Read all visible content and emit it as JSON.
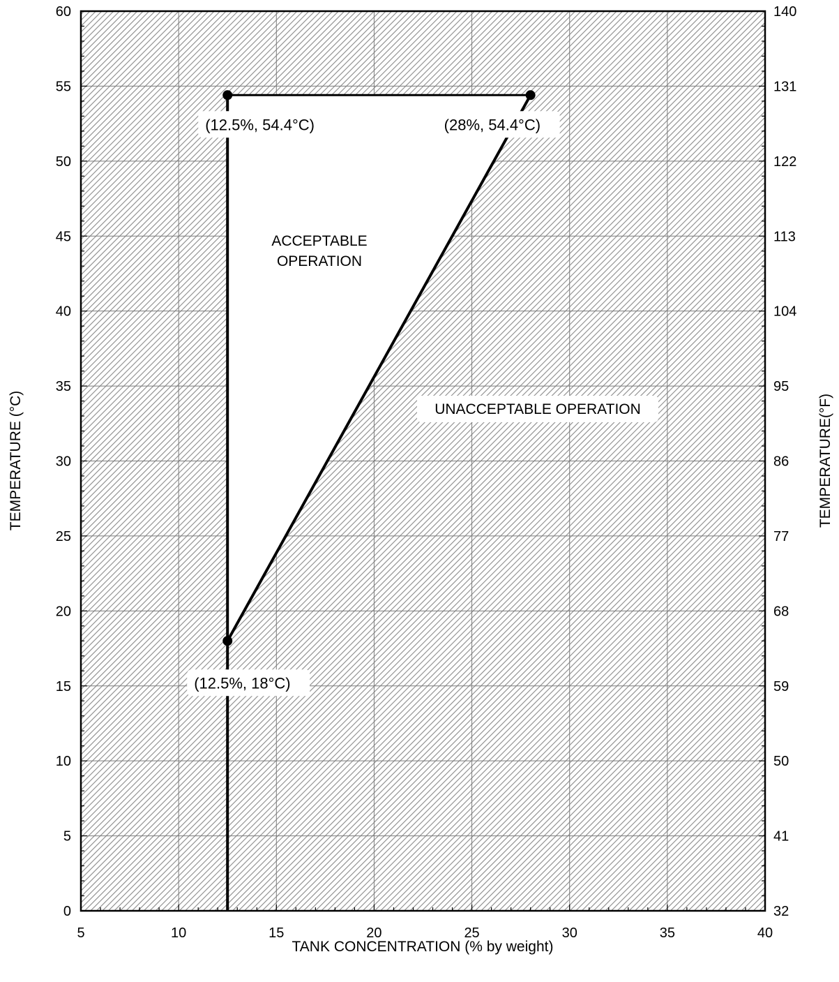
{
  "chart_data": {
    "type": "line",
    "title": "",
    "xlabel": "TANK CONCENTRATION (% by weight)",
    "ylabel": "TEMPERATURE (°C)",
    "y2label": "TEMPERATURE(°F)",
    "xlim": [
      5,
      40
    ],
    "ylim": [
      0,
      60
    ],
    "x_ticks": [
      "5",
      "10",
      "15",
      "20",
      "25",
      "30",
      "35",
      "40"
    ],
    "y_ticks": [
      "0",
      "5",
      "10",
      "15",
      "20",
      "25",
      "30",
      "35",
      "40",
      "45",
      "50",
      "55",
      "60"
    ],
    "y2_ticks": [
      "32",
      "41",
      "50",
      "59",
      "68",
      "77",
      "86",
      "95",
      "104",
      "113",
      "122",
      "131",
      "140"
    ],
    "grid": true,
    "background": "hatched",
    "points": [
      {
        "x": 12.5,
        "y": 54.4,
        "label": "(12.5%, 54.4°C)"
      },
      {
        "x": 28,
        "y": 54.4,
        "label": "(28%, 54.4°C)"
      },
      {
        "x": 12.5,
        "y": 18,
        "label": "(12.5%, 18°C)"
      }
    ],
    "acceptable_region": [
      [
        12.5,
        54.4
      ],
      [
        28,
        54.4
      ],
      [
        12.5,
        18
      ]
    ],
    "vertical_line": {
      "x": 12.5,
      "y_from": 0,
      "y_to": 54.4
    },
    "region_labels": {
      "acceptable": [
        "ACCEPTABLE",
        "OPERATION"
      ],
      "unacceptable": "UNACCEPTABLE OPERATION"
    },
    "colors": {
      "line": "#000000",
      "hatch": "#8a8a8a",
      "grid": "#7a7a7a"
    }
  }
}
